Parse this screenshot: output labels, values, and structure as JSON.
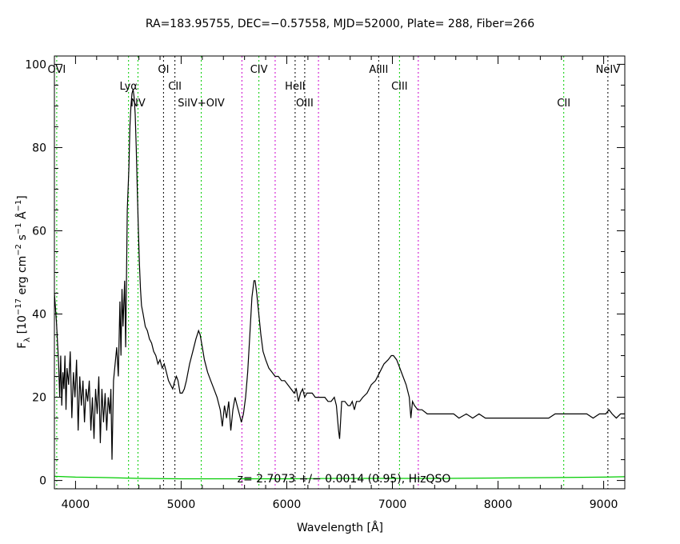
{
  "chart_data": {
    "type": "line",
    "title": "RA=183.95755, DEC=−0.57558, MJD=52000, Plate=  288, Fiber=266",
    "xlabel": "Wavelength [Å]",
    "ylabel_main": "F",
    "ylabel_sub": "λ",
    "ylabel_rest": " [10",
    "ylabel_exp1": "−17",
    "ylabel_units": " erg cm",
    "ylabel_exp2": "−2",
    "ylabel_s": " s",
    "ylabel_exp3": "−1",
    "ylabel_ang": " Å",
    "ylabel_exp4": "−1",
    "ylabel_close": "]",
    "xlim": [
      3800,
      9200
    ],
    "ylim": [
      -2,
      102
    ],
    "xticks": [
      4000,
      5000,
      6000,
      7000,
      8000,
      9000
    ],
    "yticks": [
      0,
      20,
      40,
      60,
      80,
      100
    ],
    "annotation": "z= 2.7073 +/− 0.0014 (0.95), HizQSO",
    "colors": {
      "flux": "#000000",
      "error": "#00cc00",
      "green_line": "#00cc00",
      "black_line": "#000000",
      "magenta_line": "#cc00cc"
    },
    "lines": [
      {
        "label": "OVI",
        "x": 3822,
        "color": "green",
        "row": 0
      },
      {
        "label": "Lyα",
        "x": 4502,
        "color": "green",
        "row": 1
      },
      {
        "label": "NV",
        "x": 4591,
        "color": "green",
        "row": 2
      },
      {
        "label": "OI",
        "x": 4833,
        "color": "black",
        "row": 0
      },
      {
        "label": "CII",
        "x": 4941,
        "color": "black",
        "row": 1
      },
      {
        "label": "SiIV+OIV",
        "x": 5190,
        "color": "green",
        "row": 2
      },
      {
        "label": "",
        "x": 5575,
        "color": "magenta",
        "row": 0
      },
      {
        "label": "CIV",
        "x": 5736,
        "color": "green",
        "row": 0
      },
      {
        "label": "",
        "x": 5890,
        "color": "magenta",
        "row": 0
      },
      {
        "label": "HeII",
        "x": 6079,
        "color": "black",
        "row": 1
      },
      {
        "label": "OIII",
        "x": 6170,
        "color": "black",
        "row": 2
      },
      {
        "label": "",
        "x": 6300,
        "color": "magenta",
        "row": 0
      },
      {
        "label": "AlIII",
        "x": 6870,
        "color": "black",
        "row": 0
      },
      {
        "label": "CIII",
        "x": 7067,
        "color": "green",
        "row": 1
      },
      {
        "label": "",
        "x": 7245,
        "color": "magenta",
        "row": 0
      },
      {
        "label": "CII",
        "x": 8622,
        "color": "green",
        "row": 2
      },
      {
        "label": "NeIV",
        "x": 9040,
        "color": "black",
        "row": 0
      }
    ],
    "series": [
      {
        "values_note": "flux",
        "points": [
          [
            3800,
            45
          ],
          [
            3820,
            38
          ],
          [
            3840,
            28
          ],
          [
            3850,
            20
          ],
          [
            3860,
            30
          ],
          [
            3870,
            18
          ],
          [
            3880,
            26
          ],
          [
            3890,
            22
          ],
          [
            3900,
            30
          ],
          [
            3910,
            17
          ],
          [
            3920,
            27
          ],
          [
            3935,
            23
          ],
          [
            3950,
            31
          ],
          [
            3965,
            15
          ],
          [
            3980,
            26
          ],
          [
            3995,
            20
          ],
          [
            4010,
            29
          ],
          [
            4025,
            12
          ],
          [
            4040,
            25
          ],
          [
            4055,
            18
          ],
          [
            4070,
            24
          ],
          [
            4085,
            14
          ],
          [
            4100,
            22
          ],
          [
            4115,
            19
          ],
          [
            4130,
            24
          ],
          [
            4145,
            12
          ],
          [
            4160,
            20
          ],
          [
            4175,
            10
          ],
          [
            4190,
            22
          ],
          [
            4205,
            16
          ],
          [
            4220,
            25
          ],
          [
            4235,
            9
          ],
          [
            4250,
            22
          ],
          [
            4265,
            14
          ],
          [
            4280,
            21
          ],
          [
            4295,
            12
          ],
          [
            4310,
            20
          ],
          [
            4325,
            16
          ],
          [
            4335,
            22
          ],
          [
            4345,
            5
          ],
          [
            4360,
            24
          ],
          [
            4375,
            28
          ],
          [
            4390,
            32
          ],
          [
            4405,
            25
          ],
          [
            4420,
            43
          ],
          [
            4430,
            30
          ],
          [
            4440,
            46
          ],
          [
            4450,
            37
          ],
          [
            4465,
            48
          ],
          [
            4475,
            32
          ],
          [
            4490,
            65
          ],
          [
            4505,
            75
          ],
          [
            4515,
            85
          ],
          [
            4525,
            90
          ],
          [
            4535,
            93
          ],
          [
            4545,
            94
          ],
          [
            4555,
            92
          ],
          [
            4565,
            88
          ],
          [
            4575,
            80
          ],
          [
            4585,
            70
          ],
          [
            4595,
            60
          ],
          [
            4605,
            52
          ],
          [
            4615,
            46
          ],
          [
            4625,
            42
          ],
          [
            4640,
            40
          ],
          [
            4660,
            37
          ],
          [
            4680,
            36
          ],
          [
            4700,
            34
          ],
          [
            4720,
            33
          ],
          [
            4740,
            31
          ],
          [
            4760,
            30
          ],
          [
            4780,
            28
          ],
          [
            4800,
            29
          ],
          [
            4820,
            27
          ],
          [
            4840,
            28
          ],
          [
            4860,
            26
          ],
          [
            4880,
            24
          ],
          [
            4900,
            23
          ],
          [
            4920,
            22
          ],
          [
            4940,
            24
          ],
          [
            4955,
            25
          ],
          [
            4970,
            24
          ],
          [
            4990,
            21
          ],
          [
            5010,
            21
          ],
          [
            5030,
            22
          ],
          [
            5050,
            24
          ],
          [
            5080,
            28
          ],
          [
            5110,
            31
          ],
          [
            5140,
            34
          ],
          [
            5165,
            36
          ],
          [
            5180,
            35
          ],
          [
            5200,
            32
          ],
          [
            5220,
            29
          ],
          [
            5250,
            26
          ],
          [
            5280,
            24
          ],
          [
            5310,
            22
          ],
          [
            5340,
            20
          ],
          [
            5370,
            17
          ],
          [
            5390,
            13
          ],
          [
            5410,
            18
          ],
          [
            5430,
            15
          ],
          [
            5450,
            19
          ],
          [
            5470,
            12
          ],
          [
            5490,
            17
          ],
          [
            5510,
            20
          ],
          [
            5530,
            18
          ],
          [
            5550,
            16
          ],
          [
            5570,
            14
          ],
          [
            5590,
            16
          ],
          [
            5610,
            20
          ],
          [
            5630,
            26
          ],
          [
            5650,
            35
          ],
          [
            5670,
            44
          ],
          [
            5690,
            48
          ],
          [
            5700,
            48
          ],
          [
            5715,
            45
          ],
          [
            5735,
            40
          ],
          [
            5755,
            35
          ],
          [
            5775,
            31
          ],
          [
            5800,
            29
          ],
          [
            5830,
            27
          ],
          [
            5860,
            26
          ],
          [
            5890,
            25
          ],
          [
            5920,
            25
          ],
          [
            5950,
            24
          ],
          [
            5980,
            24
          ],
          [
            6010,
            23
          ],
          [
            6040,
            22
          ],
          [
            6070,
            21
          ],
          [
            6090,
            22
          ],
          [
            6110,
            19
          ],
          [
            6130,
            21
          ],
          [
            6150,
            22
          ],
          [
            6170,
            20
          ],
          [
            6190,
            21
          ],
          [
            6210,
            21
          ],
          [
            6240,
            21
          ],
          [
            6270,
            20
          ],
          [
            6300,
            20
          ],
          [
            6330,
            20
          ],
          [
            6360,
            20
          ],
          [
            6390,
            19
          ],
          [
            6420,
            19
          ],
          [
            6450,
            20
          ],
          [
            6470,
            18
          ],
          [
            6490,
            12
          ],
          [
            6500,
            10
          ],
          [
            6520,
            19
          ],
          [
            6550,
            19
          ],
          [
            6580,
            18
          ],
          [
            6600,
            18
          ],
          [
            6620,
            19
          ],
          [
            6640,
            17
          ],
          [
            6660,
            19
          ],
          [
            6690,
            19
          ],
          [
            6720,
            20
          ],
          [
            6760,
            21
          ],
          [
            6800,
            23
          ],
          [
            6840,
            24
          ],
          [
            6880,
            26
          ],
          [
            6920,
            28
          ],
          [
            6960,
            29
          ],
          [
            6990,
            30
          ],
          [
            7010,
            30
          ],
          [
            7040,
            29
          ],
          [
            7070,
            27
          ],
          [
            7100,
            25
          ],
          [
            7130,
            23
          ],
          [
            7160,
            20
          ],
          [
            7175,
            15
          ],
          [
            7190,
            19
          ],
          [
            7210,
            18
          ],
          [
            7240,
            17
          ],
          [
            7280,
            17
          ],
          [
            7330,
            16
          ],
          [
            7380,
            16
          ],
          [
            7430,
            16
          ],
          [
            7480,
            16
          ],
          [
            7530,
            16
          ],
          [
            7580,
            16
          ],
          [
            7630,
            15
          ],
          [
            7700,
            16
          ],
          [
            7760,
            15
          ],
          [
            7820,
            16
          ],
          [
            7880,
            15
          ],
          [
            7940,
            15
          ],
          [
            8000,
            15
          ],
          [
            8060,
            15
          ],
          [
            8120,
            15
          ],
          [
            8180,
            15
          ],
          [
            8240,
            15
          ],
          [
            8300,
            15
          ],
          [
            8360,
            15
          ],
          [
            8420,
            15
          ],
          [
            8480,
            15
          ],
          [
            8540,
            16
          ],
          [
            8600,
            16
          ],
          [
            8660,
            16
          ],
          [
            8720,
            16
          ],
          [
            8780,
            16
          ],
          [
            8840,
            16
          ],
          [
            8900,
            15
          ],
          [
            8960,
            16
          ],
          [
            9020,
            16
          ],
          [
            9050,
            17
          ],
          [
            9080,
            16
          ],
          [
            9120,
            15
          ],
          [
            9160,
            16
          ],
          [
            9200,
            16
          ]
        ]
      },
      {
        "values_note": "error",
        "points": [
          [
            3800,
            1
          ],
          [
            4000,
            0.8
          ],
          [
            4300,
            0.7
          ],
          [
            4600,
            0.5
          ],
          [
            5000,
            0.4
          ],
          [
            5500,
            0.4
          ],
          [
            6000,
            0.4
          ],
          [
            6500,
            0.5
          ],
          [
            7000,
            0.5
          ],
          [
            7500,
            0.5
          ],
          [
            8000,
            0.6
          ],
          [
            8500,
            0.7
          ],
          [
            9000,
            0.8
          ],
          [
            9200,
            0.9
          ]
        ]
      }
    ]
  }
}
